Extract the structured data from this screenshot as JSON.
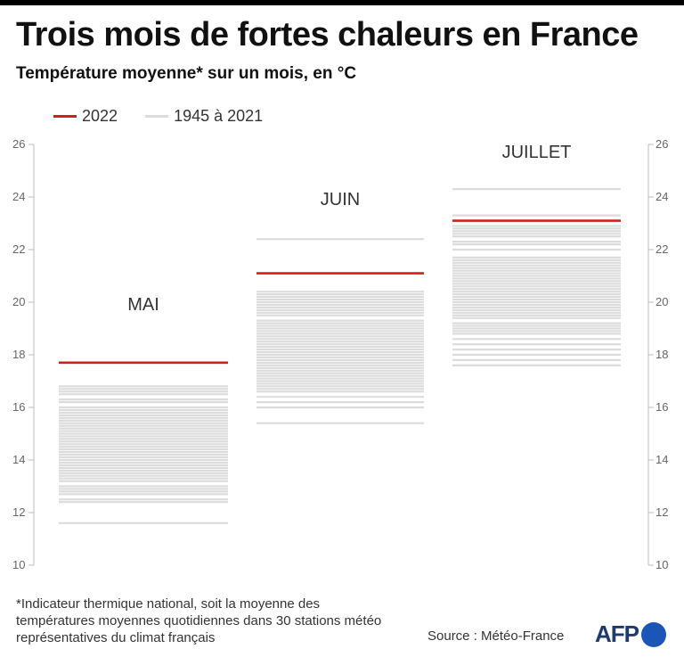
{
  "title": "Trois mois de fortes chaleurs en France",
  "subtitle": "Température moyenne* sur un mois, en °C",
  "legend": {
    "current": "2022",
    "historical": "1945 à 2021"
  },
  "footnote": "*Indicateur thermique national, soit la moyenne des températures moyennes quotidiennes dans 30 stations météo représentatives du climat français",
  "source": "Source : Météo-France",
  "logo": "AFP",
  "colors": {
    "current": "#d0201c",
    "historical": "#dcdcdc",
    "axis": "#bdbdbd",
    "logo_dot": "#1a56b8"
  },
  "chart_data": {
    "type": "strip",
    "yrange": [
      10,
      26
    ],
    "yticks": [
      10,
      12,
      14,
      16,
      18,
      20,
      22,
      24,
      26
    ],
    "categories": [
      "MAI",
      "JUIN",
      "JUILLET"
    ],
    "series": [
      {
        "name": "2022",
        "values": [
          17.7,
          21.1,
          23.1
        ]
      },
      {
        "name": "1945 à 2021",
        "values": [
          [
            11.6,
            12.4,
            12.5,
            12.7,
            12.8,
            12.9,
            13.0,
            13.2,
            13.3,
            13.4,
            13.5,
            13.6,
            13.7,
            13.8,
            13.9,
            14.0,
            14.1,
            14.2,
            14.3,
            14.4,
            14.5,
            14.6,
            14.7,
            14.8,
            14.9,
            15.0,
            15.1,
            15.2,
            15.3,
            15.4,
            15.5,
            15.6,
            15.7,
            15.8,
            15.9,
            16.0,
            16.2,
            16.3,
            16.5,
            16.6,
            16.7,
            16.8
          ],
          [
            15.4,
            16.0,
            16.2,
            16.4,
            16.6,
            16.7,
            16.8,
            16.9,
            17.0,
            17.1,
            17.2,
            17.3,
            17.4,
            17.5,
            17.6,
            17.7,
            17.8,
            17.9,
            18.0,
            18.1,
            18.2,
            18.3,
            18.4,
            18.5,
            18.6,
            18.7,
            18.8,
            18.9,
            19.0,
            19.1,
            19.2,
            19.3,
            19.5,
            19.6,
            19.7,
            19.8,
            19.9,
            20.0,
            20.1,
            20.2,
            20.3,
            20.4,
            22.4
          ],
          [
            17.6,
            17.8,
            18.0,
            18.2,
            18.4,
            18.6,
            18.8,
            18.9,
            19.0,
            19.1,
            19.2,
            19.4,
            19.5,
            19.6,
            19.7,
            19.8,
            19.9,
            20.0,
            20.1,
            20.2,
            20.3,
            20.4,
            20.5,
            20.6,
            20.7,
            20.8,
            20.9,
            21.0,
            21.1,
            21.2,
            21.3,
            21.4,
            21.5,
            21.6,
            21.7,
            22.0,
            22.2,
            22.3,
            22.5,
            22.6,
            22.7,
            22.8,
            22.9,
            23.3,
            24.3
          ]
        ]
      }
    ]
  }
}
